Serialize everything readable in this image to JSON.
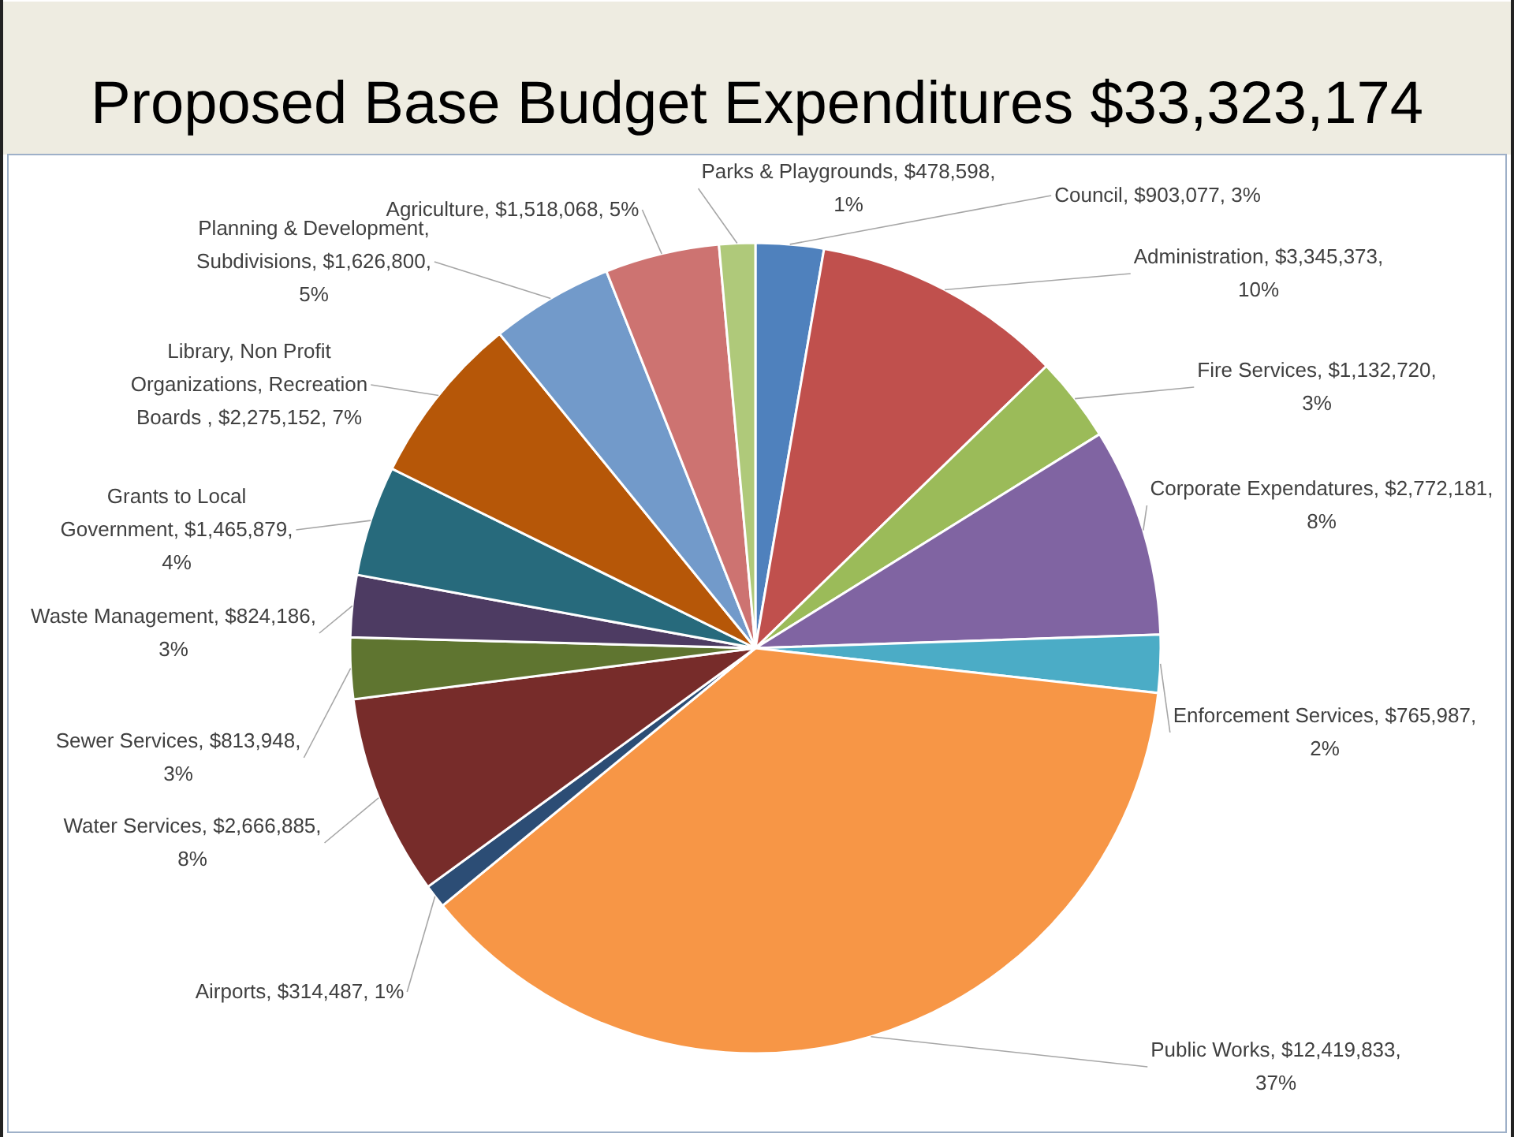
{
  "chart_data": {
    "type": "pie",
    "title": "Proposed Base Budget Expenditures $33,323,174",
    "categories": [
      "Council",
      "Administration",
      "Fire Services",
      "Corporate Expendatures",
      "Enforcement Services",
      "Public Works",
      "Airports",
      "Water Services",
      "Sewer Services",
      "Waste Management",
      "Grants to Local Government",
      "Library, Non Profit Organizations, Recreation Boards ",
      "Planning & Development, Subdivisions",
      "Agriculture",
      "Parks & Playgrounds"
    ],
    "values": [
      903077,
      3345373,
      1132720,
      2772181,
      765987,
      12419833,
      314487,
      2666885,
      813948,
      824186,
      1465879,
      2275152,
      1626800,
      1518068,
      478598
    ],
    "value_labels": [
      "$903,077, 3%",
      "$3,345,373, 10%",
      "$1,132,720, 3%",
      "$2,772,181, 8%",
      "$765,987, 2%",
      "$12,419,833, 37%",
      "$314,487, 1%",
      "$2,666,885, 8%",
      "$813,948, 3%",
      "$824,186, 3%",
      "$1,465,879, 4%",
      "$2,275,152, 7%",
      "$1,626,800, 5%",
      "$1,518,068, 5%",
      "$478,598, 1%"
    ],
    "colors": [
      "#4f81bd",
      "#c0504d",
      "#9bbb59",
      "#8064a2",
      "#4bacc6",
      "#f79646",
      "#2c4d75",
      "#772c2a",
      "#5f7530",
      "#4d3b62",
      "#276a7c",
      "#b65708",
      "#729aca",
      "#cd7371",
      "#afc97a"
    ]
  }
}
